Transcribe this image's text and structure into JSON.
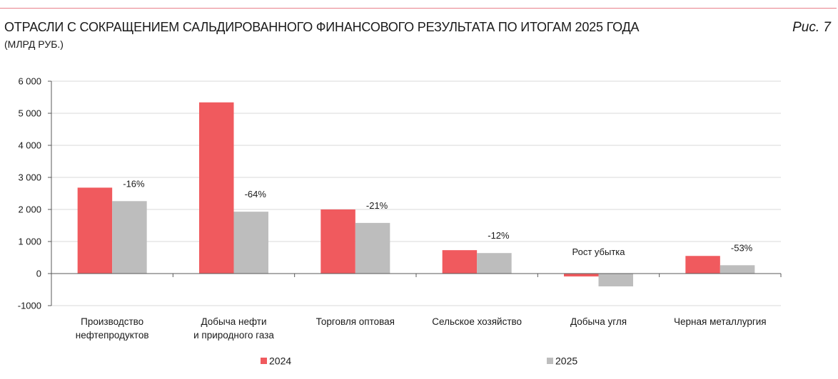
{
  "header": {
    "title": "ОТРАСЛИ С СОКРАЩЕНИЕМ САЛЬДИРОВАННОГО ФИНАНСОВОГО РЕЗУЛЬТАТА ПО ИТОГАМ 2025 ГОДА",
    "subtitle": "(МЛРД РУБ.)",
    "figure_label": "Рис. 7"
  },
  "colors": {
    "rule": "#e8808a",
    "grid": "#d9d9d9",
    "axis": "#595959"
  },
  "chart_data": {
    "type": "bar",
    "title": "ОТРАСЛИ С СОКРАЩЕНИЕМ САЛЬДИРОВАННОГО ФИНАНСОВОГО РЕЗУЛЬТАТА ПО ИТОГАМ 2025 ГОДА",
    "subtitle": "(МЛРД РУБ.)",
    "xlabel": "",
    "ylabel": "",
    "categories": [
      [
        "Производство",
        "нефтепродуктов"
      ],
      [
        "Добыча нефти",
        "и природного газа"
      ],
      [
        "Торговля оптовая"
      ],
      [
        "Сельское хозяйство"
      ],
      [
        "Добыча угля"
      ],
      [
        "Черная металлургия"
      ]
    ],
    "series": [
      {
        "name": "2024",
        "color": "#f05a5e",
        "values": [
          2680,
          5340,
          2000,
          730,
          -90,
          550
        ]
      },
      {
        "name": "2025",
        "color": "#bdbdbd",
        "values": [
          2260,
          1930,
          1580,
          640,
          -400,
          260
        ]
      }
    ],
    "annotations": [
      "-16%",
      "-64%",
      "-21%",
      "-12%",
      "Рост убытка",
      "-53%"
    ],
    "ylim": [
      -1000,
      6000
    ],
    "yticks": [
      6000,
      5000,
      4000,
      3000,
      2000,
      1000,
      0,
      -1000
    ],
    "ytick_labels": [
      "6 000",
      "5 000",
      "4 000",
      "3 000",
      "2 000",
      "1 000",
      "0",
      "-1000"
    ],
    "grid": true,
    "legend": "bottom"
  }
}
